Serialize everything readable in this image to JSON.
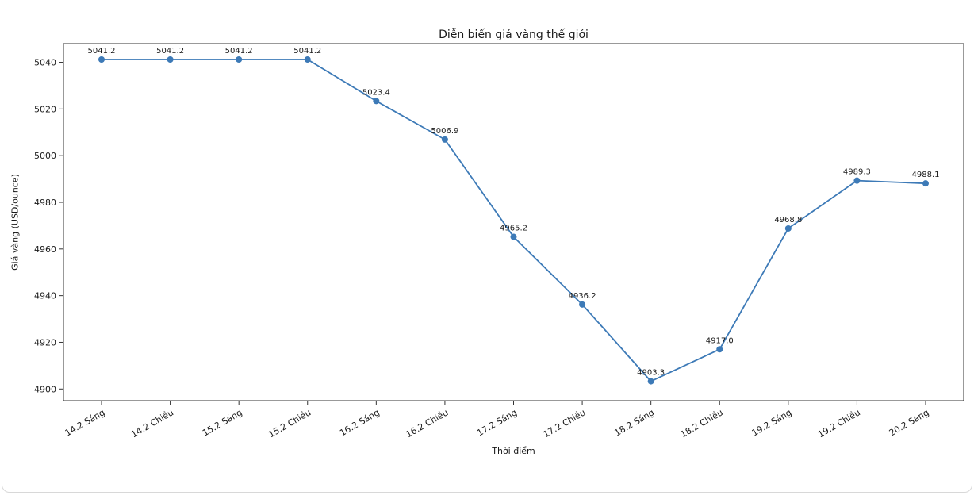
{
  "window": {
    "background": "#ffffff",
    "frame_border_color": "#d8d8d8"
  },
  "chart_data": {
    "type": "line",
    "title": "Diễn biến giá vàng thế giới",
    "xlabel": "Thời điểm",
    "ylabel": "Giá vàng (USD/ounce)",
    "categories": [
      "14.2 Sáng",
      "14.2 Chiều",
      "15.2 Sáng",
      "15.2 Chiều",
      "16.2 Sáng",
      "16.2 Chiều",
      "17.2 Sáng",
      "17.2 Chiều",
      "18.2 Sáng",
      "18.2 Chiều",
      "19.2 Sáng",
      "19.2 Chiều",
      "20.2 Sáng"
    ],
    "values": [
      5041.2,
      5041.2,
      5041.2,
      5041.2,
      5023.4,
      5006.9,
      4965.2,
      4936.2,
      4903.3,
      4917.0,
      4968.8,
      4989.3,
      4988.1
    ],
    "value_label_decimals": 1,
    "y_ticks": [
      4900,
      4920,
      4940,
      4960,
      4980,
      5000,
      5020,
      5040
    ],
    "ylim": [
      4895,
      5048
    ],
    "x_tick_rotation": 30,
    "grid": false,
    "legend": null,
    "line_color": "#3d7ab7",
    "marker": "circle",
    "spine_color": "#333333",
    "text_color": "#1a1a1a"
  }
}
